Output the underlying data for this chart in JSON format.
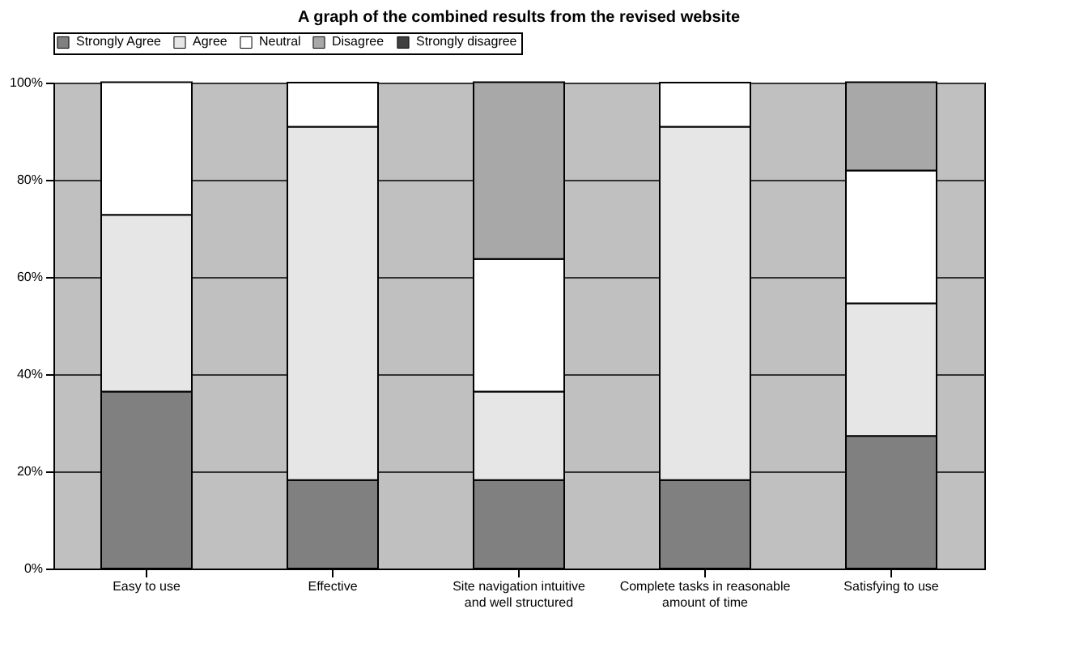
{
  "chart_data": {
    "type": "bar",
    "title": "A graph of the combined results from the revised website",
    "categories": [
      "Easy to use",
      "Effective",
      "Site navigation intuitive and well structured",
      "Complete tasks in reasonable amount of time",
      "Satisfying to use"
    ],
    "series": [
      {
        "name": "Strongly Agree",
        "color": "#808080",
        "values": [
          36.4,
          18.2,
          18.2,
          18.2,
          27.3
        ]
      },
      {
        "name": "Agree",
        "color": "#e6e6e6",
        "values": [
          36.4,
          72.7,
          18.2,
          72.7,
          27.3
        ]
      },
      {
        "name": "Neutral",
        "color": "#ffffff",
        "values": [
          27.3,
          9.1,
          27.3,
          9.1,
          27.3
        ]
      },
      {
        "name": "Disagree",
        "color": "#a8a8a8",
        "values": [
          0,
          0,
          36.4,
          0,
          18.2
        ]
      },
      {
        "name": "Strongly disagree",
        "color": "#404040",
        "values": [
          0,
          0,
          0,
          0,
          0
        ]
      }
    ],
    "stacked": true,
    "ylim": [
      0,
      100
    ],
    "yticks": [
      {
        "value": 0,
        "label": "0%"
      },
      {
        "value": 20,
        "label": "20%"
      },
      {
        "value": 40,
        "label": "40%"
      },
      {
        "value": 60,
        "label": "60%"
      },
      {
        "value": 80,
        "label": "80%"
      },
      {
        "value": 100,
        "label": "100%"
      }
    ],
    "grid": "y",
    "legend": "top"
  }
}
